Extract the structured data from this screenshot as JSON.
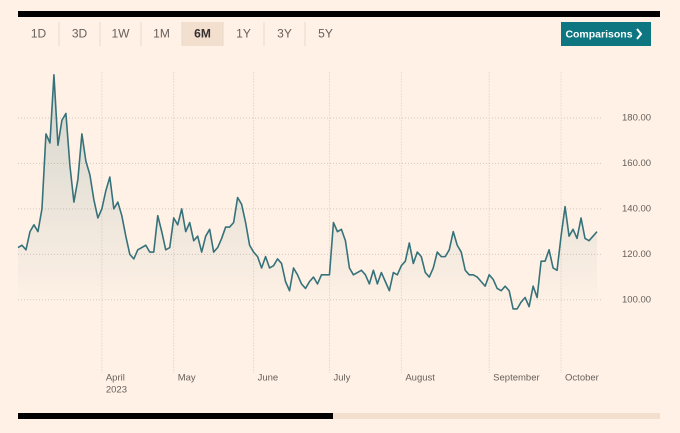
{
  "controls": {
    "ranges": [
      "1D",
      "3D",
      "1W",
      "1M",
      "6M",
      "1Y",
      "3Y",
      "5Y"
    ],
    "selected": "6M",
    "comparisons": "Comparisons"
  },
  "chart_data": {
    "type": "line",
    "color": "#36727a",
    "grid": true,
    "year_label": "2023",
    "categories": [
      null,
      null,
      null,
      null,
      null,
      null,
      null,
      null,
      null,
      null,
      null,
      null,
      null,
      null,
      null,
      null,
      null,
      null,
      null,
      null,
      null,
      "April",
      null,
      null,
      null,
      null,
      null,
      null,
      null,
      null,
      null,
      null,
      null,
      null,
      null,
      null,
      null,
      null,
      null,
      "May",
      null,
      null,
      null,
      null,
      null,
      null,
      null,
      null,
      null,
      null,
      null,
      null,
      null,
      null,
      null,
      null,
      null,
      null,
      null,
      "June",
      null,
      null,
      null,
      null,
      null,
      null,
      null,
      null,
      null,
      null,
      null,
      null,
      null,
      null,
      null,
      null,
      null,
      null,
      "July",
      null,
      null,
      null,
      null,
      null,
      null,
      null,
      null,
      null,
      null,
      null,
      null,
      null,
      null,
      null,
      null,
      null,
      "August",
      null,
      null,
      null,
      null,
      null,
      null,
      null,
      null,
      null,
      null,
      null,
      null,
      null,
      null,
      null,
      null,
      null,
      null,
      null,
      null,
      null,
      "September",
      null,
      null,
      null,
      null,
      null,
      null,
      null,
      null,
      null,
      null,
      null,
      null,
      null,
      null,
      null,
      null,
      null,
      "October",
      null,
      null,
      null,
      null,
      null,
      null,
      null,
      null,
      null
    ],
    "values": [
      123,
      124,
      122,
      130,
      133,
      130,
      140,
      173,
      169,
      199,
      168,
      179,
      182,
      159,
      143,
      153,
      173,
      161,
      155,
      144,
      136,
      140,
      148,
      154,
      140,
      143,
      137,
      128,
      120,
      118,
      122,
      123,
      124,
      121,
      121,
      137,
      130,
      122,
      123,
      136,
      133,
      140,
      130,
      134,
      126,
      128,
      121,
      128,
      131,
      121,
      123,
      127,
      132,
      132,
      134,
      145,
      142,
      134,
      124,
      121,
      119,
      114,
      119,
      114,
      115,
      118,
      116,
      108,
      104,
      114,
      111,
      107,
      105,
      108,
      110,
      107,
      111,
      111,
      111,
      134,
      130,
      131,
      126,
      114,
      111,
      112,
      113,
      111,
      107,
      113,
      107,
      112,
      108,
      104,
      112,
      111,
      115,
      117,
      125,
      116,
      121,
      119,
      112,
      110,
      114,
      121,
      119,
      119,
      122,
      130,
      124,
      121,
      113,
      111,
      111,
      110,
      108,
      106,
      111,
      109,
      105,
      104,
      106,
      104,
      96,
      96,
      99,
      101,
      97,
      106,
      101,
      117,
      117,
      122,
      114,
      113,
      128,
      141,
      128,
      131,
      127,
      136,
      127,
      126,
      128,
      130
    ],
    "ylim": [
      70,
      200
    ],
    "yticks": [
      {
        "value": 100,
        "label": "100.00"
      },
      {
        "value": 120,
        "label": "120.00"
      },
      {
        "value": 140,
        "label": "140.00"
      },
      {
        "value": 160,
        "label": "160.00"
      },
      {
        "value": 180,
        "label": "180.00"
      }
    ]
  }
}
